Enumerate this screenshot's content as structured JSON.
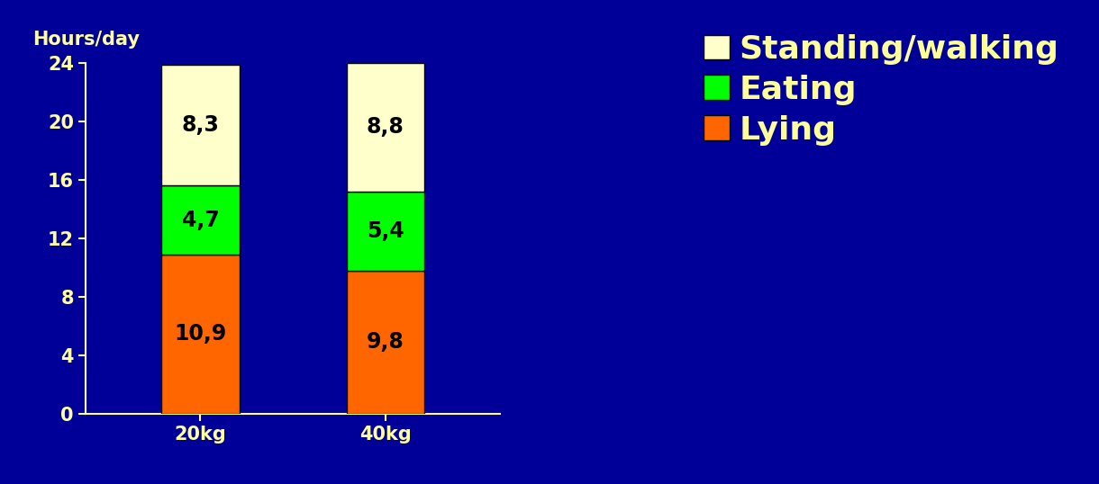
{
  "chart_data": {
    "type": "bar",
    "stacked": true,
    "y_label": "Hours/day",
    "categories": [
      "20kg",
      "40kg"
    ],
    "series": [
      {
        "name": "Lying",
        "color": "#ff6600",
        "values": [
          10.9,
          9.8
        ],
        "value_labels": [
          "10,9",
          "9,8"
        ]
      },
      {
        "name": "Eating",
        "color": "#00ff00",
        "values": [
          4.7,
          5.4
        ],
        "value_labels": [
          "4,7",
          "5,4"
        ]
      },
      {
        "name": "Standing/walking",
        "color": "#ffffcc",
        "values": [
          8.3,
          8.8
        ],
        "value_labels": [
          "8,3",
          "8,8"
        ]
      }
    ],
    "ylim": [
      0,
      24
    ],
    "yticks": [
      0,
      4,
      8,
      12,
      16,
      20,
      24
    ],
    "data_labels": true,
    "legend": "upper right",
    "grid": false
  }
}
